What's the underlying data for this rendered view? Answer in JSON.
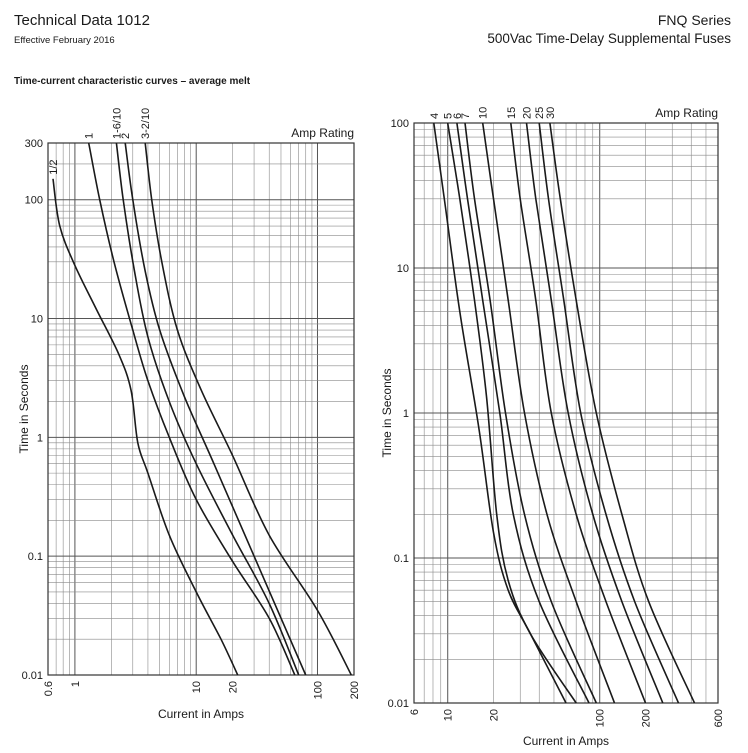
{
  "header": {
    "doc_title": "Technical Data 1012",
    "doc_date": "Effective February 2016",
    "series_name": "FNQ Series",
    "series_desc": "500Vac Time-Delay Supplemental Fuses",
    "section_heading": "Time-current characteristic curves – average melt"
  },
  "chart_data": [
    {
      "type": "line",
      "title": "",
      "xlabel": "Current in Amps",
      "ylabel": "Time in Seconds",
      "legend_title": "Amp Rating",
      "x_scale": "log",
      "y_scale": "log",
      "xlim": [
        0.6,
        200
      ],
      "ylim": [
        0.01,
        300
      ],
      "x_ticks": [
        {
          "value": 0.6,
          "label": "0.6"
        },
        {
          "value": 1,
          "label": "1"
        },
        {
          "value": 10,
          "label": "10"
        },
        {
          "value": 20,
          "label": "20"
        },
        {
          "value": 100,
          "label": "100"
        },
        {
          "value": 200,
          "label": "200"
        }
      ],
      "y_ticks": [
        {
          "value": 300,
          "label": "300"
        },
        {
          "value": 100,
          "label": "100"
        },
        {
          "value": 10,
          "label": "10"
        },
        {
          "value": 1,
          "label": "1"
        },
        {
          "value": 0.1,
          "label": "0.1"
        },
        {
          "value": 0.01,
          "label": "0.01"
        }
      ],
      "grid": true,
      "series": [
        {
          "name": "1/2",
          "x": [
            0.66,
            0.75,
            1.0,
            1.5,
            2.3,
            2.9,
            3.3,
            4.0,
            6.0,
            10,
            16,
            22
          ],
          "y": [
            150,
            60,
            28,
            12,
            5,
            2.5,
            0.9,
            0.5,
            0.15,
            0.05,
            0.02,
            0.01
          ]
        },
        {
          "name": "1",
          "x": [
            1.3,
            1.6,
            2.1,
            3.0,
            4.0,
            6.0,
            10,
            20,
            40,
            65
          ],
          "y": [
            300,
            100,
            30,
            8,
            3,
            1,
            0.3,
            0.09,
            0.03,
            0.01
          ]
        },
        {
          "name": "1-6/10",
          "x": [
            2.2,
            2.5,
            3.1,
            4.0,
            6.0,
            10,
            20,
            40,
            70
          ],
          "y": [
            300,
            100,
            25,
            7,
            2,
            0.6,
            0.15,
            0.04,
            0.01
          ]
        },
        {
          "name": "2",
          "x": [
            2.6,
            3.0,
            3.8,
            5.0,
            8.0,
            14,
            30,
            80
          ],
          "y": [
            300,
            100,
            25,
            8,
            2.2,
            0.6,
            0.1,
            0.01
          ]
        },
        {
          "name": "3-2/10",
          "x": [
            3.8,
            4.3,
            5.2,
            7.0,
            11,
            20,
            40,
            100,
            190
          ],
          "y": [
            300,
            100,
            30,
            8,
            2.5,
            0.7,
            0.15,
            0.035,
            0.01
          ]
        }
      ]
    },
    {
      "type": "line",
      "title": "",
      "xlabel": "Current in Amps",
      "ylabel": "Time in Seconds",
      "legend_title": "Amp Rating",
      "x_scale": "log",
      "y_scale": "log",
      "xlim": [
        6,
        600
      ],
      "ylim": [
        0.01,
        100
      ],
      "x_ticks": [
        {
          "value": 6,
          "label": "6"
        },
        {
          "value": 10,
          "label": "10"
        },
        {
          "value": 20,
          "label": "20"
        },
        {
          "value": 100,
          "label": "100"
        },
        {
          "value": 200,
          "label": "200"
        },
        {
          "value": 600,
          "label": "600"
        }
      ],
      "y_ticks": [
        {
          "value": 100,
          "label": "100"
        },
        {
          "value": 10,
          "label": "10"
        },
        {
          "value": 1,
          "label": "1"
        },
        {
          "value": 0.1,
          "label": "0.1"
        },
        {
          "value": 0.01,
          "label": "0.01"
        }
      ],
      "grid": true,
      "series": [
        {
          "name": "4",
          "x": [
            8.1,
            9.5,
            12,
            16,
            20,
            25,
            35,
            60
          ],
          "y": [
            100,
            30,
            5,
            0.8,
            0.15,
            0.06,
            0.03,
            0.01
          ]
        },
        {
          "name": "5",
          "x": [
            10,
            12,
            15,
            18,
            21,
            25,
            35,
            70
          ],
          "y": [
            100,
            30,
            6,
            1.3,
            0.2,
            0.07,
            0.03,
            0.01
          ]
        },
        {
          "name": "6",
          "x": [
            11.5,
            13.5,
            17,
            22,
            27,
            40,
            85
          ],
          "y": [
            100,
            30,
            6,
            1,
            0.2,
            0.05,
            0.01
          ]
        },
        {
          "name": "7",
          "x": [
            13,
            15,
            19,
            24,
            32,
            48,
            95
          ],
          "y": [
            100,
            30,
            6,
            1,
            0.2,
            0.05,
            0.01
          ]
        },
        {
          "name": "10",
          "x": [
            17,
            20,
            25,
            32,
            45,
            70,
            125
          ],
          "y": [
            100,
            30,
            6,
            1,
            0.2,
            0.05,
            0.01
          ]
        },
        {
          "name": "15",
          "x": [
            26,
            30,
            38,
            48,
            70,
            110,
            200
          ],
          "y": [
            100,
            30,
            6,
            1,
            0.2,
            0.05,
            0.01
          ]
        },
        {
          "name": "20",
          "x": [
            33,
            38,
            48,
            62,
            90,
            140,
            260
          ],
          "y": [
            100,
            30,
            6,
            1,
            0.2,
            0.05,
            0.01
          ]
        },
        {
          "name": "25",
          "x": [
            40,
            46,
            58,
            75,
            110,
            170,
            330
          ],
          "y": [
            100,
            30,
            6,
            1,
            0.2,
            0.05,
            0.01
          ]
        },
        {
          "name": "30",
          "x": [
            47,
            55,
            70,
            95,
            140,
            210,
            420
          ],
          "y": [
            100,
            30,
            6,
            1,
            0.2,
            0.05,
            0.01
          ]
        }
      ]
    }
  ]
}
